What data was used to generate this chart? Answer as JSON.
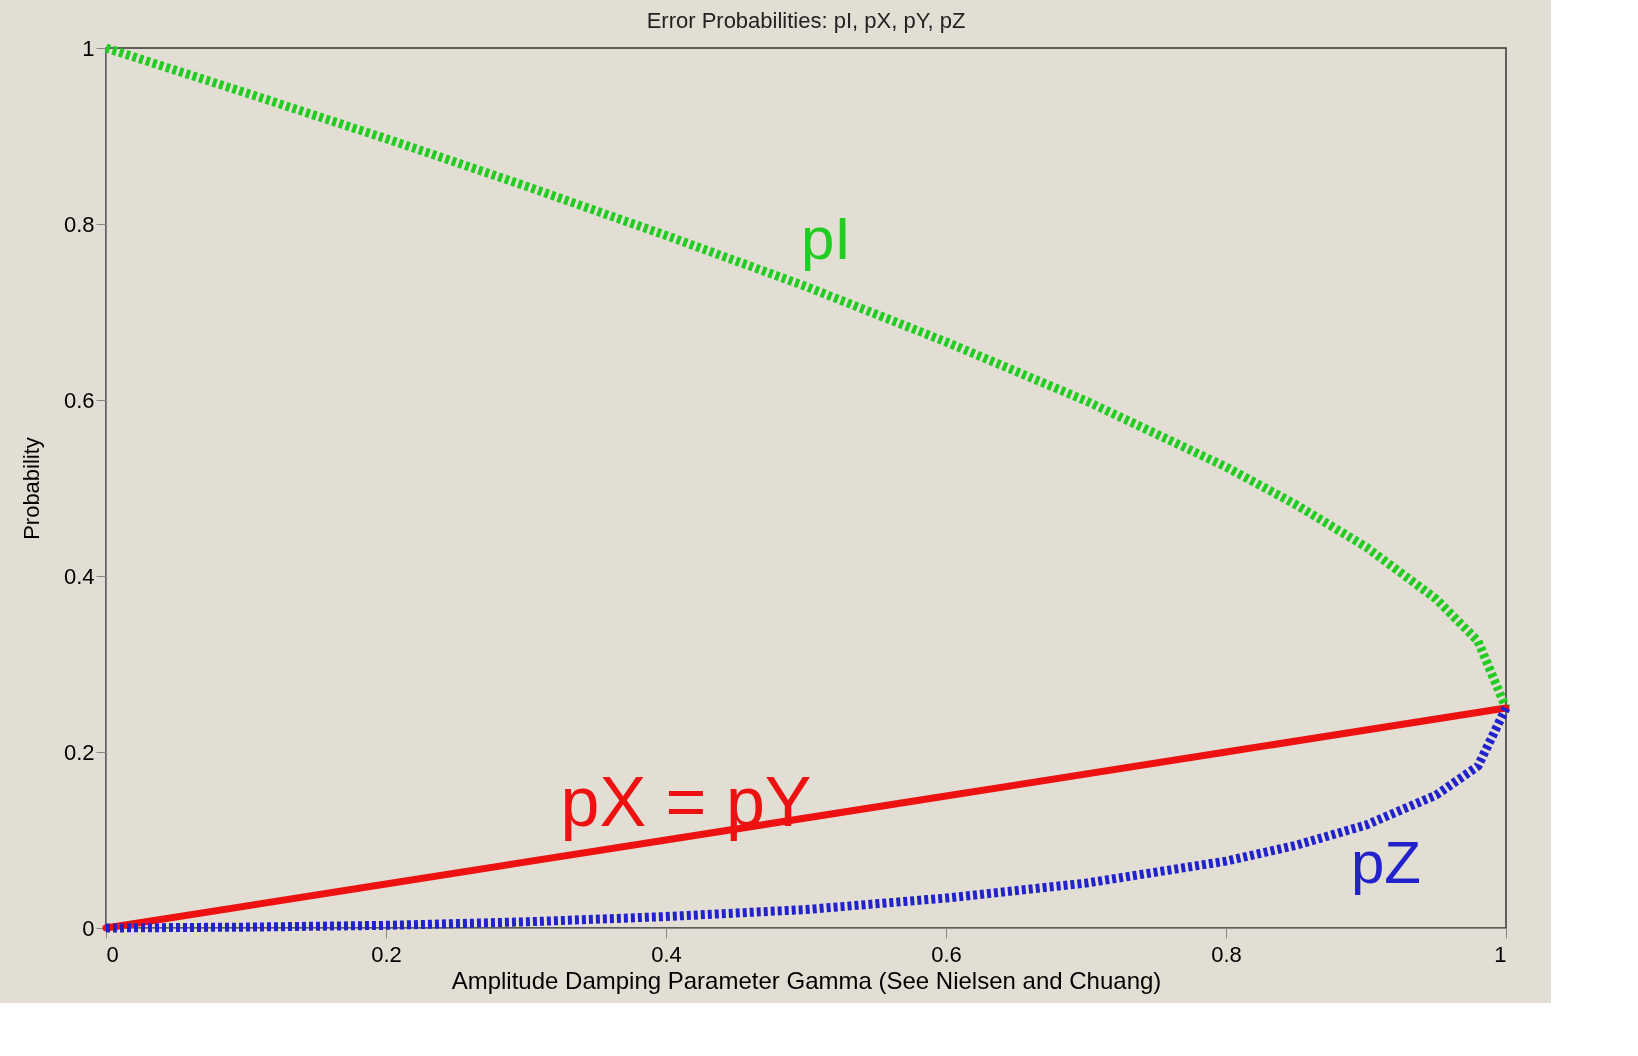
{
  "chart_data": {
    "type": "line",
    "title": "Error Probabilities: pI, pX, pY, pZ",
    "xlabel": "Amplitude Damping Parameter Gamma (See Nielsen and Chuang)",
    "ylabel": "Probability",
    "x": [
      0,
      0.1,
      0.2,
      0.3,
      0.4,
      0.5,
      0.6,
      0.7,
      0.8,
      0.85,
      0.9,
      0.95,
      0.98,
      1
    ],
    "series": [
      {
        "name": "pI",
        "color": "#22cc22",
        "line_style": "dotted",
        "values": [
          1,
          0.949,
          0.897,
          0.843,
          0.787,
          0.729,
          0.666,
          0.599,
          0.524,
          0.481,
          0.433,
          0.374,
          0.326,
          0.25
        ]
      },
      {
        "name": "pX = pY",
        "color": "#ee1111",
        "line_style": "solid",
        "x": [
          0,
          0.2,
          0.4,
          0.6,
          0.8,
          1
        ],
        "values": [
          0,
          0.05,
          0.1,
          0.15,
          0.2,
          0.25
        ]
      },
      {
        "name": "pZ",
        "color": "#2222cc",
        "line_style": "dotted",
        "values": [
          0,
          0.001,
          0.003,
          0.007,
          0.013,
          0.021,
          0.034,
          0.051,
          0.076,
          0.094,
          0.117,
          0.151,
          0.184,
          0.25
        ]
      }
    ],
    "xlim": [
      0,
      1
    ],
    "ylim": [
      0,
      1
    ],
    "xticks": [
      0,
      0.2,
      0.4,
      0.6,
      0.8,
      1
    ],
    "yticks": [
      0,
      0.2,
      0.4,
      0.6,
      0.8,
      1
    ],
    "grid": false,
    "legend": false
  }
}
